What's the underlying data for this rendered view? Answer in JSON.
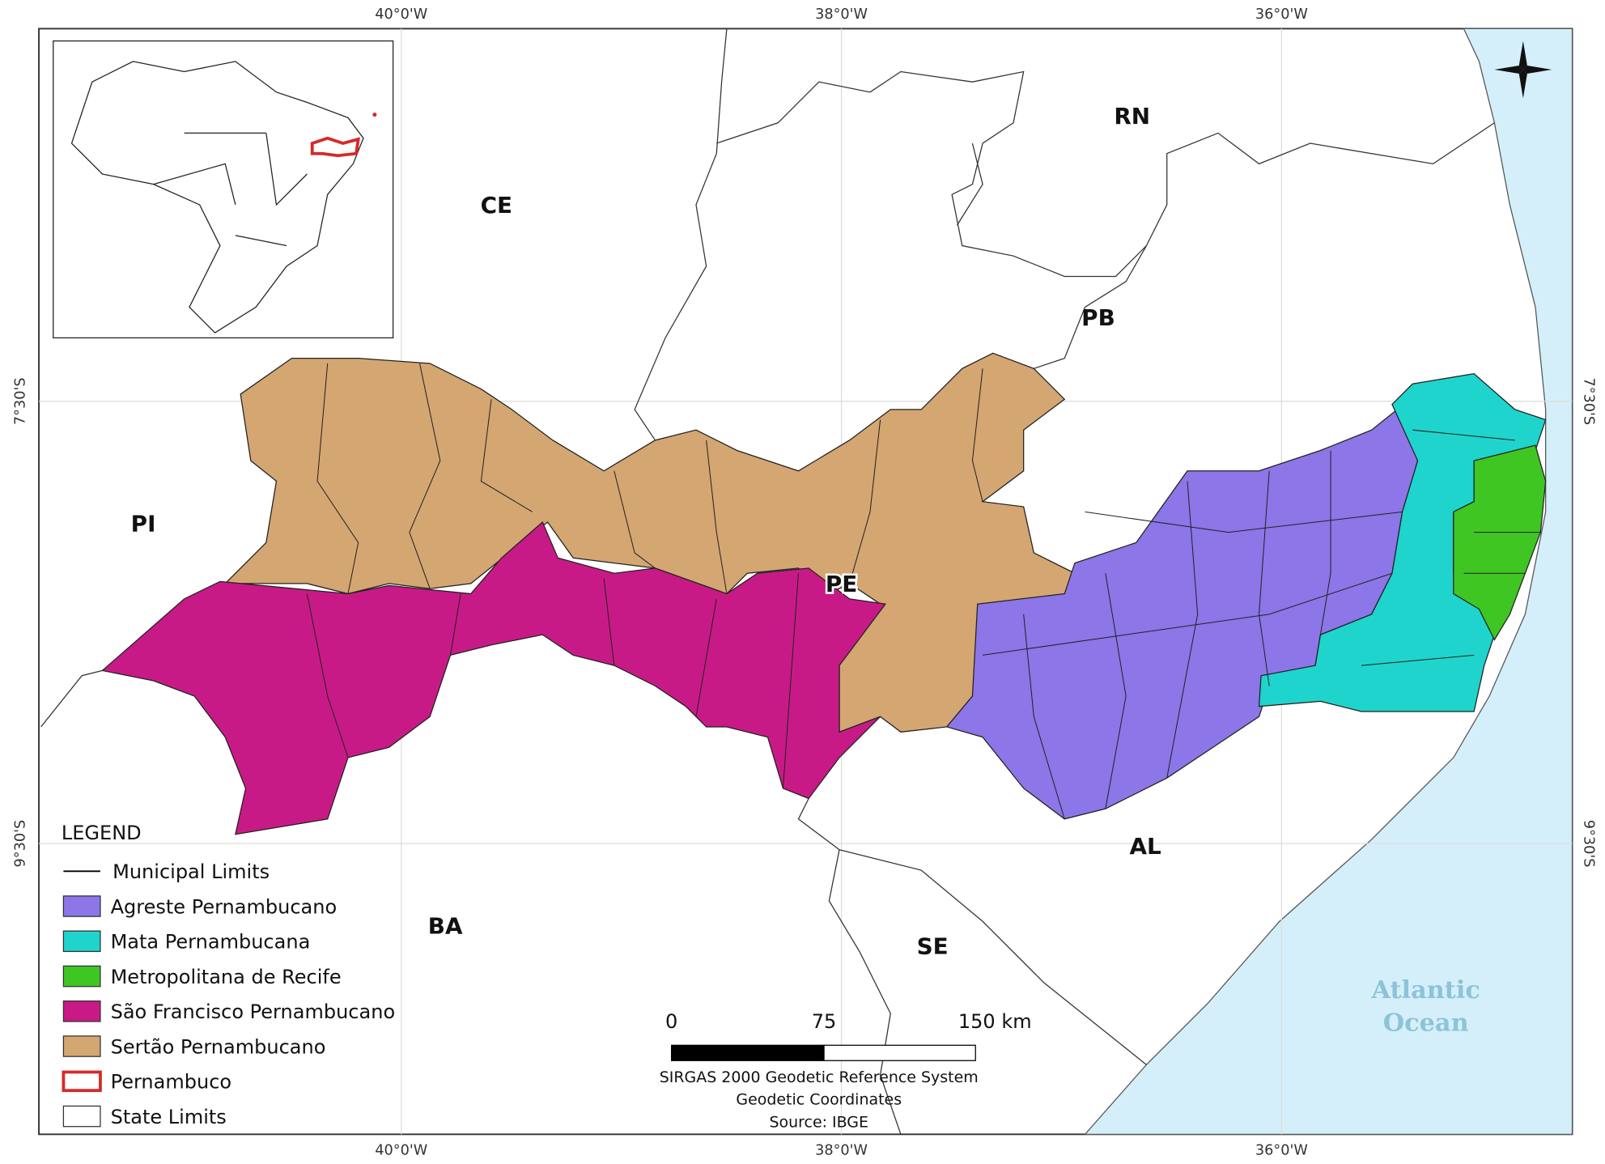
{
  "coordinates": {
    "top": [
      "40°0'W",
      "38°0'W",
      "36°0'W"
    ],
    "bottom": [
      "40°0'W",
      "38°0'W",
      "36°0'W"
    ],
    "left": [
      "7°30'S",
      "9°30'S"
    ],
    "right": [
      "7°30'S",
      "9°30'S"
    ]
  },
  "state_labels": [
    "CE",
    "RN",
    "PB",
    "PI",
    "PE",
    "BA",
    "AL",
    "SE"
  ],
  "ocean_label": [
    "Atlantic",
    "Ocean"
  ],
  "legend": {
    "title": "LEGEND",
    "items": [
      {
        "label": "Municipal Limits",
        "symbol": "line",
        "color": "#000000"
      },
      {
        "label": "Agreste Pernambucano",
        "symbol": "fill",
        "color": "#8c76e8"
      },
      {
        "label": "Mata Pernambucana",
        "symbol": "fill",
        "color": "#1fd4cc"
      },
      {
        "label": "Metropolitana de Recife",
        "symbol": "fill",
        "color": "#3fc623"
      },
      {
        "label": "São Francisco Pernambucano",
        "symbol": "fill",
        "color": "#c81a87"
      },
      {
        "label": "Sertão Pernambucano",
        "symbol": "fill",
        "color": "#d4a672"
      },
      {
        "label": "Pernambuco",
        "symbol": "outline",
        "color": "#d42a2a"
      },
      {
        "label": "State Limits",
        "symbol": "fill",
        "color": "#ffffff"
      }
    ]
  },
  "scale_bar": {
    "labels": [
      "0",
      "75",
      "150 km"
    ]
  },
  "credits": [
    "SIRGAS 2000 Geodetic Reference System",
    "Geodetic Coordinates",
    "Source: IBGE"
  ]
}
